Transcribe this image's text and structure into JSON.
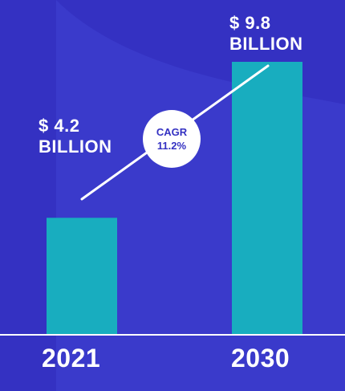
{
  "chart_data": {
    "type": "bar",
    "categories": [
      "2021",
      "2030"
    ],
    "values": [
      4.2,
      9.8
    ],
    "value_labels": [
      [
        "$ 4.2",
        "BILLION"
      ],
      [
        "$ 9.8",
        "BILLION"
      ]
    ],
    "annotation": {
      "label": "CAGR",
      "value": "11.2%"
    },
    "ylim": [
      0,
      9.8
    ],
    "grid": false,
    "legend": "none"
  },
  "colors": {
    "background": "#3431c2",
    "background_shape": "#3a3acb",
    "bar": "#18adbf",
    "text": "#ffffff",
    "baseline": "#ffffff",
    "trend_line": "#ffffff",
    "badge_text": "#3431c2"
  }
}
